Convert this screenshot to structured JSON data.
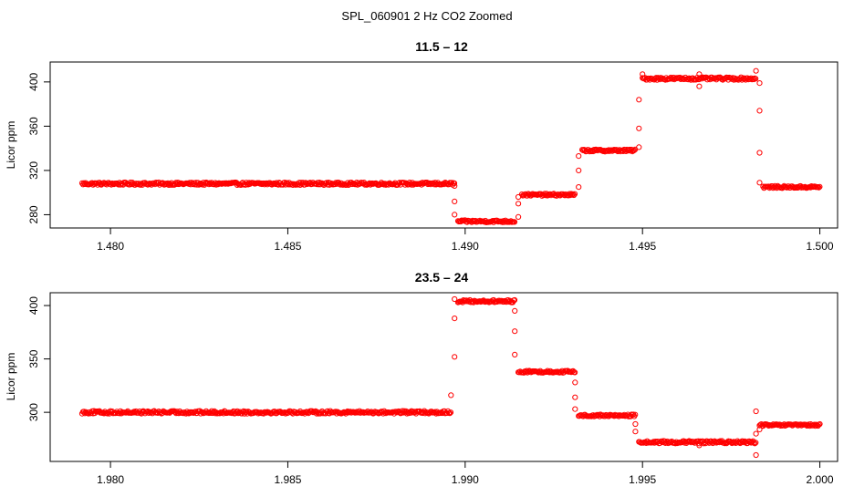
{
  "figure": {
    "suptitle": "SPL_060901  2 Hz CO2 Zoomed",
    "colors": {
      "marker": "#ff0000",
      "axis": "#000000",
      "background": "#ffffff"
    }
  },
  "chart_data": [
    {
      "type": "scatter",
      "title": "11.5 – 12",
      "xlabel": "",
      "ylabel": "Licor ppm",
      "xlim": [
        1.4783,
        1.5005
      ],
      "ylim": [
        268,
        418
      ],
      "xticks": [
        1.48,
        1.485,
        1.49,
        1.495,
        1.5
      ],
      "xtick_labels": [
        "1.480",
        "1.485",
        "1.490",
        "1.495",
        "1.500"
      ],
      "yticks": [
        280,
        320,
        360,
        400
      ],
      "ytick_labels": [
        "280",
        "320",
        "360",
        "400"
      ],
      "grid": false,
      "marker": "open-circle",
      "series": [
        {
          "segments": [
            {
              "x_start": 1.4792,
              "x_end": 1.4897,
              "y": 308,
              "noise": 1.2
            },
            {
              "x_start": 1.4898,
              "x_end": 1.4914,
              "y": 274,
              "noise": 1.0
            },
            {
              "x_start": 1.4916,
              "x_end": 1.4931,
              "y": 298,
              "noise": 1.0
            },
            {
              "x_start": 1.4933,
              "x_end": 1.4948,
              "y": 338,
              "noise": 1.0
            },
            {
              "x_start": 1.495,
              "x_end": 1.4982,
              "y": 403,
              "noise": 1.2
            },
            {
              "x_start": 1.4984,
              "x_end": 1.5,
              "y": 305,
              "noise": 1.0
            }
          ],
          "transition_points": [
            {
              "x": 1.4897,
              "y": 306
            },
            {
              "x": 1.4897,
              "y": 292
            },
            {
              "x": 1.4897,
              "y": 280
            },
            {
              "x": 1.4915,
              "y": 278
            },
            {
              "x": 1.4915,
              "y": 290
            },
            {
              "x": 1.4915,
              "y": 296
            },
            {
              "x": 1.4932,
              "y": 305
            },
            {
              "x": 1.4932,
              "y": 320
            },
            {
              "x": 1.4932,
              "y": 333
            },
            {
              "x": 1.4949,
              "y": 341
            },
            {
              "x": 1.4949,
              "y": 358
            },
            {
              "x": 1.4949,
              "y": 384
            },
            {
              "x": 1.495,
              "y": 407
            },
            {
              "x": 1.4966,
              "y": 407
            },
            {
              "x": 1.4966,
              "y": 396
            },
            {
              "x": 1.4982,
              "y": 410
            },
            {
              "x": 1.4983,
              "y": 399
            },
            {
              "x": 1.4983,
              "y": 374
            },
            {
              "x": 1.4983,
              "y": 336
            },
            {
              "x": 1.4983,
              "y": 309
            }
          ]
        }
      ]
    },
    {
      "type": "scatter",
      "title": "23.5 – 24",
      "xlabel": "",
      "ylabel": "Licor ppm",
      "xlim": [
        1.9783,
        2.0005
      ],
      "ylim": [
        254,
        412
      ],
      "xticks": [
        1.98,
        1.985,
        1.99,
        1.995,
        2.0
      ],
      "xtick_labels": [
        "1.980",
        "1.985",
        "1.990",
        "1.995",
        "2.000"
      ],
      "yticks": [
        300,
        350,
        400
      ],
      "ytick_labels": [
        "300",
        "350",
        "400"
      ],
      "grid": false,
      "marker": "open-circle",
      "series": [
        {
          "segments": [
            {
              "x_start": 1.9792,
              "x_end": 1.9896,
              "y": 300,
              "noise": 1.3
            },
            {
              "x_start": 1.9898,
              "x_end": 1.9914,
              "y": 404,
              "noise": 1.2
            },
            {
              "x_start": 1.9915,
              "x_end": 1.9931,
              "y": 338,
              "noise": 1.0
            },
            {
              "x_start": 1.9932,
              "x_end": 1.9948,
              "y": 297,
              "noise": 1.0
            },
            {
              "x_start": 1.9949,
              "x_end": 1.9982,
              "y": 272,
              "noise": 1.2
            },
            {
              "x_start": 1.9983,
              "x_end": 2.0,
              "y": 288,
              "noise": 1.0
            }
          ],
          "transition_points": [
            {
              "x": 1.9896,
              "y": 316
            },
            {
              "x": 1.9897,
              "y": 352
            },
            {
              "x": 1.9897,
              "y": 388
            },
            {
              "x": 1.9897,
              "y": 406
            },
            {
              "x": 1.9914,
              "y": 395
            },
            {
              "x": 1.9914,
              "y": 376
            },
            {
              "x": 1.9914,
              "y": 354
            },
            {
              "x": 1.9931,
              "y": 328
            },
            {
              "x": 1.9931,
              "y": 314
            },
            {
              "x": 1.9931,
              "y": 303
            },
            {
              "x": 1.9948,
              "y": 289
            },
            {
              "x": 1.9948,
              "y": 282
            },
            {
              "x": 1.9966,
              "y": 269
            },
            {
              "x": 1.9982,
              "y": 260
            },
            {
              "x": 1.9982,
              "y": 301
            },
            {
              "x": 1.9982,
              "y": 280
            },
            {
              "x": 1.9983,
              "y": 284
            }
          ]
        }
      ]
    }
  ]
}
